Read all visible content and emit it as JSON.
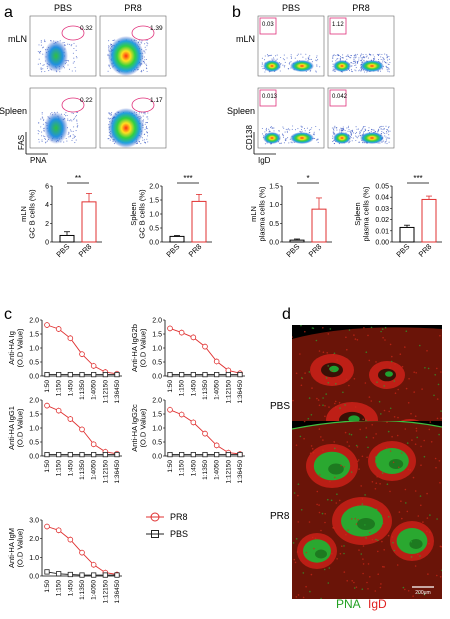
{
  "panel_letters": [
    "a",
    "b",
    "c",
    "d"
  ],
  "flow_a": {
    "cols": [
      "PBS",
      "PR8"
    ],
    "rows": [
      "mLN",
      "Spleen"
    ],
    "gates": [
      [
        "0.32",
        "1.39"
      ],
      [
        "0.22",
        "1.17"
      ]
    ],
    "xaxis": "PNA",
    "yaxis": "FAS"
  },
  "flow_b": {
    "cols": [
      "PBS",
      "PR8"
    ],
    "rows": [
      "mLN",
      "Spleen"
    ],
    "gates": [
      [
        "0.03",
        "1.12"
      ],
      [
        "0.013",
        "0.042"
      ]
    ],
    "xaxis": "IgD",
    "yaxis": "CD138"
  },
  "bars": [
    {
      "ylabel": [
        "mLN",
        "GC B cells (%)"
      ],
      "ticks": [
        "0",
        "2",
        "4",
        "6"
      ],
      "ylim": [
        0,
        6
      ],
      "categories": [
        "PBS",
        "PR8"
      ],
      "values": [
        0.7,
        4.3
      ],
      "errors": [
        0.4,
        0.9
      ],
      "sig": "**"
    },
    {
      "ylabel": [
        "Spleen",
        "GC B cells (%)"
      ],
      "ticks": [
        "0.0",
        "0.5",
        "1.0",
        "1.5",
        "2.0"
      ],
      "ylim": [
        0,
        2
      ],
      "categories": [
        "PBS",
        "PR8"
      ],
      "values": [
        0.2,
        1.45
      ],
      "errors": [
        0.03,
        0.25
      ],
      "sig": "***"
    },
    {
      "ylabel": [
        "mLN",
        "plasma cells (%)"
      ],
      "ticks": [
        "0.0",
        "0.5",
        "1.0",
        "1.5"
      ],
      "ylim": [
        0,
        1.5
      ],
      "categories": [
        "PBS",
        "PR8"
      ],
      "values": [
        0.05,
        0.88
      ],
      "errors": [
        0.03,
        0.3
      ],
      "sig": "*"
    },
    {
      "ylabel": [
        "Spleen",
        "plasma cells (%)"
      ],
      "ticks": [
        "0.00",
        "0.01",
        "0.02",
        "0.03",
        "0.04",
        "0.05"
      ],
      "ylim": [
        0,
        0.05
      ],
      "categories": [
        "PBS",
        "PR8"
      ],
      "values": [
        0.013,
        0.038
      ],
      "errors": [
        0.002,
        0.003
      ],
      "sig": "***"
    }
  ],
  "chart_data": {
    "type": "line",
    "categories": [
      "1:50",
      "1:150",
      "1:450",
      "1:1350",
      "1:4050",
      "1:12150",
      "1:36450"
    ],
    "legend": [
      "PR8",
      "PBS"
    ],
    "subplots": [
      {
        "ylabel": [
          "Anti-HA Ig",
          "(O.D Value)"
        ],
        "ticks": [
          "0.0",
          "0.5",
          "1.0",
          "1.5",
          "2.0"
        ],
        "ylim": [
          0,
          2
        ],
        "series": [
          {
            "name": "PR8",
            "values": [
              1.82,
              1.68,
              1.35,
              0.78,
              0.36,
              0.14,
              0.08
            ]
          },
          {
            "name": "PBS",
            "values": [
              0.05,
              0.05,
              0.05,
              0.05,
              0.05,
              0.05,
              0.05
            ]
          }
        ]
      },
      {
        "ylabel": [
          "Anti-HA IgG2b",
          "(O.D Value)"
        ],
        "ticks": [
          "0.0",
          "0.5",
          "1.0",
          "1.5",
          "2.0"
        ],
        "ylim": [
          0,
          2
        ],
        "series": [
          {
            "name": "PR8",
            "values": [
              1.7,
              1.55,
              1.38,
              1.05,
              0.52,
              0.2,
              0.1
            ]
          },
          {
            "name": "PBS",
            "values": [
              0.05,
              0.05,
              0.05,
              0.05,
              0.05,
              0.05,
              0.05
            ]
          }
        ]
      },
      {
        "ylabel": [
          "Anti-HA IgG1",
          "(O.D Value)"
        ],
        "ticks": [
          "0.0",
          "0.5",
          "1.0",
          "1.5",
          "2.0"
        ],
        "ylim": [
          0,
          2
        ],
        "series": [
          {
            "name": "PR8",
            "values": [
              1.8,
              1.62,
              1.32,
              0.95,
              0.42,
              0.15,
              0.08
            ]
          },
          {
            "name": "PBS",
            "values": [
              0.05,
              0.05,
              0.05,
              0.05,
              0.05,
              0.05,
              0.05
            ]
          }
        ]
      },
      {
        "ylabel": [
          "Anti-HA IgG2c",
          "(O.D Value)"
        ],
        "ticks": [
          "0.0",
          "0.5",
          "1.0",
          "1.5",
          "2.0"
        ],
        "ylim": [
          0,
          2
        ],
        "series": [
          {
            "name": "PR8",
            "values": [
              1.65,
              1.48,
              1.2,
              0.8,
              0.38,
              0.12,
              0.07
            ]
          },
          {
            "name": "PBS",
            "values": [
              0.05,
              0.05,
              0.05,
              0.05,
              0.05,
              0.05,
              0.05
            ]
          }
        ]
      },
      {
        "ylabel": [
          "Anti-HA IgM",
          "(O.D Value)"
        ],
        "ticks": [
          "0.0",
          "1.0",
          "2.0",
          "3.0"
        ],
        "ylim": [
          0,
          3
        ],
        "series": [
          {
            "name": "PR8",
            "values": [
              2.65,
              2.45,
              1.95,
              1.25,
              0.6,
              0.18,
              0.08
            ]
          },
          {
            "name": "PBS",
            "values": [
              0.22,
              0.12,
              0.08,
              0.05,
              0.05,
              0.05,
              0.05
            ]
          }
        ]
      }
    ]
  },
  "histology": {
    "labels": [
      "PBS",
      "PR8"
    ],
    "scale_text": "200μm",
    "legend_pna": "PNA",
    "legend_igd": "IgD",
    "colors": {
      "pna": "#22a022",
      "igd": "#e02020"
    }
  },
  "colors": {
    "pr8": "#e03030",
    "pbs": "#222222"
  }
}
